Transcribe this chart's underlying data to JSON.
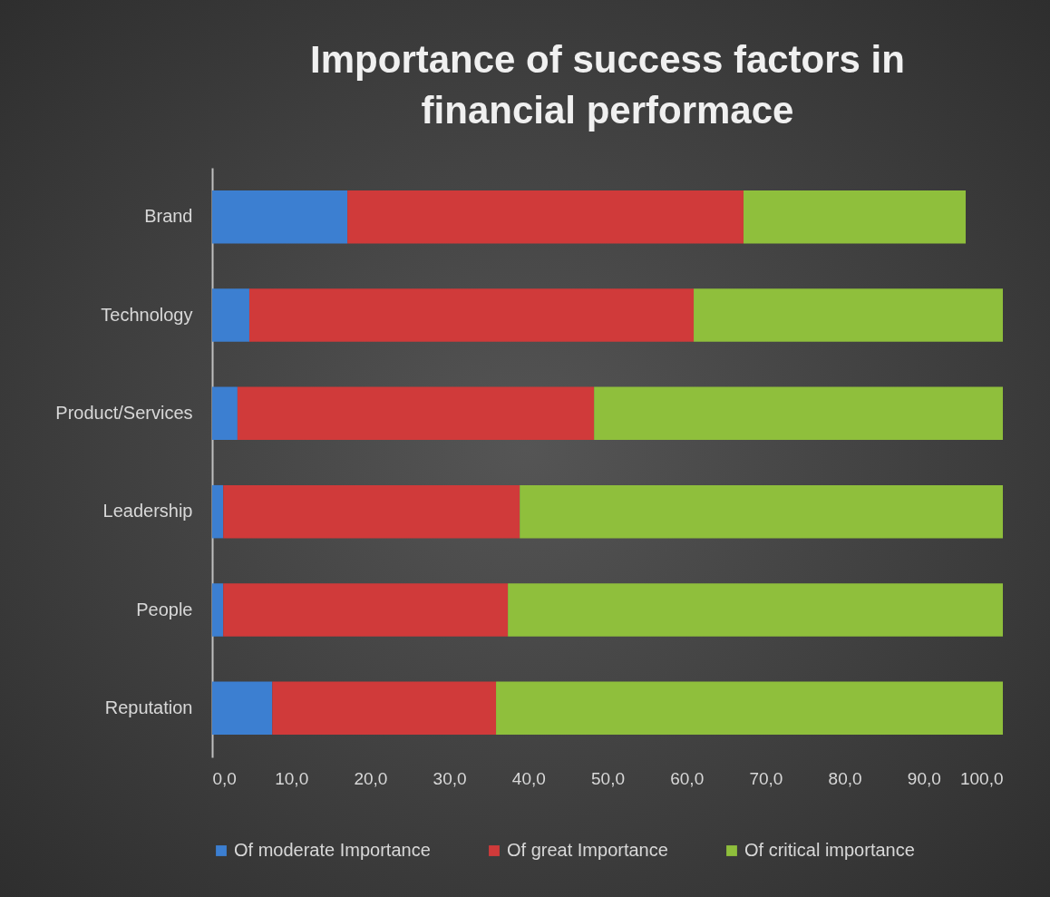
{
  "chart_data": {
    "type": "bar",
    "orientation": "horizontal",
    "stacked": true,
    "title": "Importance of success factors in financial performace",
    "categories": [
      "Brand",
      "Technology",
      "Product/Services",
      "Leadership",
      "People",
      "Reputation"
    ],
    "series": [
      {
        "name": "Of moderate Importance",
        "color": "#3c7fd1",
        "values": [
          17.1,
          4.7,
          3.2,
          1.4,
          1.4,
          7.6
        ]
      },
      {
        "name": "Of great Importance",
        "color": "#d03a3a",
        "values": [
          50.1,
          56.2,
          45.1,
          37.5,
          36.0,
          28.3
        ]
      },
      {
        "name": "Of critical importance",
        "color": "#8fbf3c",
        "values": [
          28.1,
          39.1,
          51.7,
          61.1,
          62.6,
          64.1
        ]
      }
    ],
    "xlim": [
      0,
      100
    ],
    "xticks": [
      {
        "value": 0,
        "label": "0,0"
      },
      {
        "value": 10,
        "label": "10,0"
      },
      {
        "value": 20,
        "label": "20,0"
      },
      {
        "value": 30,
        "label": "30,0"
      },
      {
        "value": 40,
        "label": "40,0"
      },
      {
        "value": 50,
        "label": "50,0"
      },
      {
        "value": 60,
        "label": "60,0"
      },
      {
        "value": 70,
        "label": "70,0"
      },
      {
        "value": 80,
        "label": "80,0"
      },
      {
        "value": 90,
        "label": "90,0"
      },
      {
        "value": 100,
        "label": "100,0"
      }
    ],
    "grid": false,
    "legend": "bottom"
  }
}
